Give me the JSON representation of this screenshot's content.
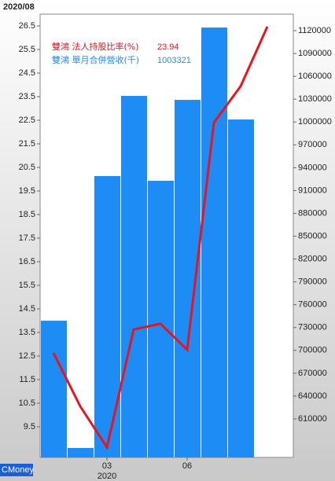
{
  "chart_data": {
    "type": "bar",
    "title": "2020/08",
    "year_label": "2020",
    "watermark": "CMoney",
    "categories": [
      null,
      null,
      "03",
      null,
      null,
      "06",
      null,
      null,
      null
    ],
    "series": [
      {
        "name": "雙鴻 法人持股比率(%)",
        "color": "#e8141e",
        "type": "line",
        "values": [
          12.63,
          10.37,
          8.63,
          13.63,
          13.87,
          12.77,
          22.4,
          23.94,
          26.47
        ]
      },
      {
        "name": "雙鴻 單月合併營收(千)",
        "color": "#1e8cf5",
        "type": "bar",
        "axis": "y2",
        "values": [
          739000,
          571800,
          929000,
          1034300,
          922800,
          1029100,
          1124100,
          1003321,
          null
        ]
      }
    ],
    "ylim": [
      8.2,
      27.0
    ],
    "yticks": [
      26.5,
      25.5,
      24.5,
      23.5,
      22.5,
      21.5,
      20.5,
      19.5,
      18.5,
      17.5,
      16.5,
      15.5,
      14.5,
      13.5,
      12.5,
      11.5,
      10.5,
      9.5
    ],
    "y2lim": [
      559400,
      1141700
    ],
    "y2ticks": [
      1120000,
      1090000,
      1060000,
      1030000,
      1000000,
      970000,
      940000,
      910000,
      880000,
      850000,
      820000,
      790000,
      760000,
      730000,
      700000,
      670000,
      640000,
      610000
    ]
  }
}
